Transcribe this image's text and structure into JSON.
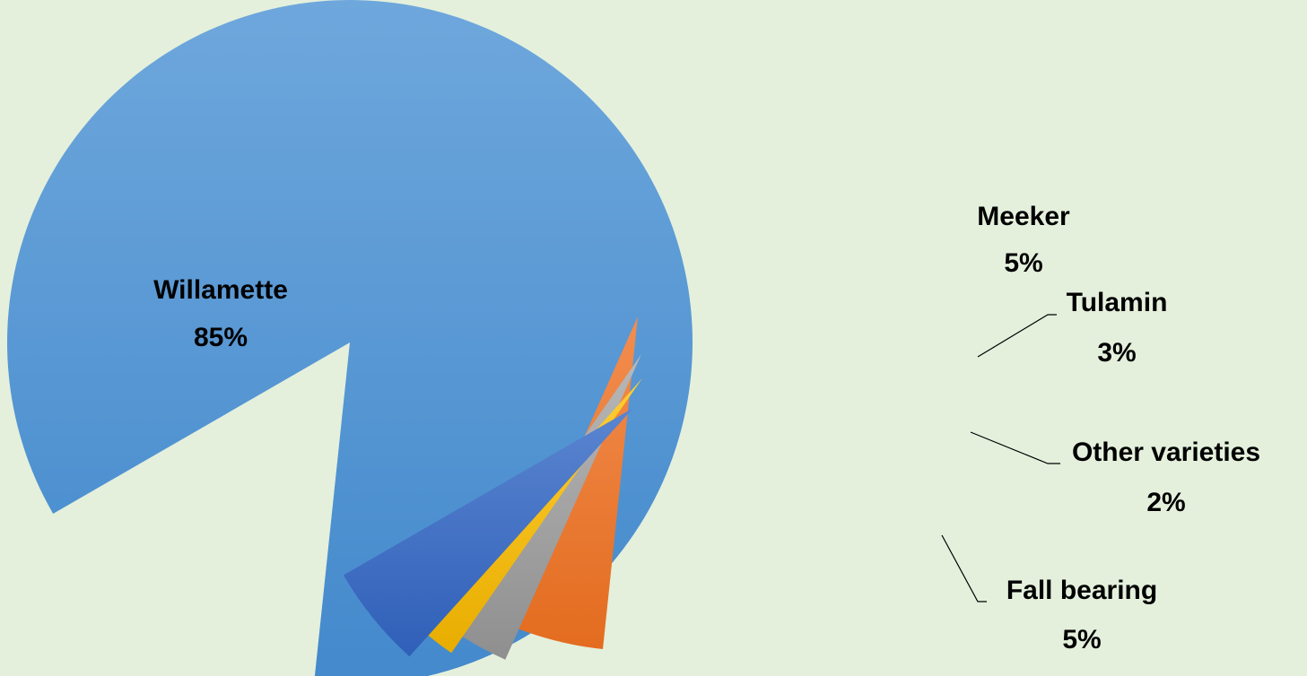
{
  "chart_data": {
    "type": "pie",
    "title": "",
    "exploded": true,
    "slices": [
      {
        "label": "Willamette",
        "value": 85,
        "value_label": "85%",
        "color": "#5b9bd5"
      },
      {
        "label": "Meeker",
        "value": 5,
        "value_label": "5%",
        "color": "#ed7d31"
      },
      {
        "label": "Tulamin",
        "value": 3,
        "value_label": "3%",
        "color": "#a5a5a5"
      },
      {
        "label": "Other varieties",
        "value": 2,
        "value_label": "2%",
        "color": "#ffc000"
      },
      {
        "label": "Fall bearing",
        "value": 5,
        "value_label": "5%",
        "color": "#4472c4"
      }
    ]
  }
}
